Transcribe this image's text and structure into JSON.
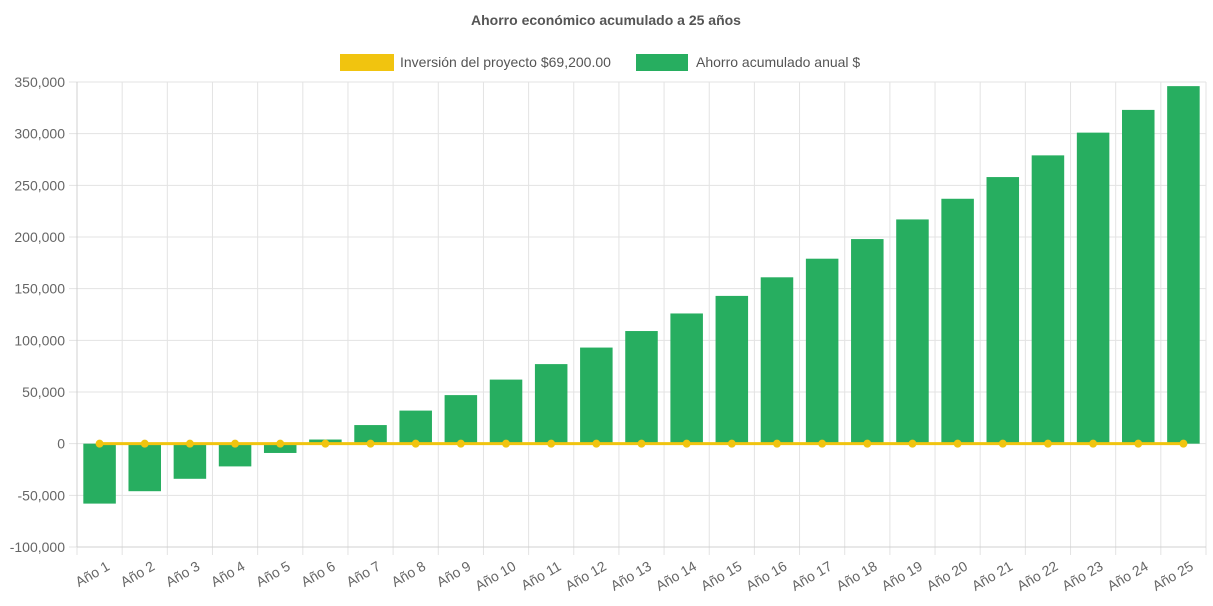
{
  "chart_data": {
    "type": "bar",
    "title": "Ahorro económico acumulado a 25 años",
    "xlabel": "",
    "ylabel": "",
    "categories": [
      "Año 1",
      "Año 2",
      "Año 3",
      "Año 4",
      "Año 5",
      "Año 6",
      "Año 7",
      "Año 8",
      "Año 9",
      "Año 10",
      "Año 11",
      "Año 12",
      "Año 13",
      "Año 14",
      "Año 15",
      "Año 16",
      "Año 17",
      "Año 18",
      "Año 19",
      "Año 20",
      "Año 21",
      "Año 22",
      "Año 23",
      "Año 24",
      "Año 25"
    ],
    "ylim": [
      -100000,
      350000
    ],
    "y_ticks": [
      350000,
      300000,
      250000,
      200000,
      150000,
      100000,
      50000,
      0,
      -50000,
      -100000
    ],
    "y_tick_labels": [
      "350,000",
      "300,000",
      "250,000",
      "200,000",
      "150,000",
      "100,000",
      "50,000",
      "0",
      "-50,000",
      "-100,000"
    ],
    "grid": true,
    "legend_position": "top-center",
    "series": [
      {
        "name": "Inversión del proyecto $69,200.00",
        "type": "line",
        "color": "#f1c40f",
        "values": [
          0,
          0,
          0,
          0,
          0,
          0,
          0,
          0,
          0,
          0,
          0,
          0,
          0,
          0,
          0,
          0,
          0,
          0,
          0,
          0,
          0,
          0,
          0,
          0,
          0
        ]
      },
      {
        "name": "Ahorro acumulado anual $",
        "type": "bar",
        "color": "#27ae60",
        "values": [
          -58000,
          -46000,
          -34000,
          -22000,
          -9000,
          4000,
          18000,
          32000,
          47000,
          62000,
          77000,
          93000,
          109000,
          126000,
          143000,
          161000,
          179000,
          198000,
          217000,
          237000,
          258000,
          279000,
          301000,
          323000,
          346000
        ]
      }
    ]
  }
}
